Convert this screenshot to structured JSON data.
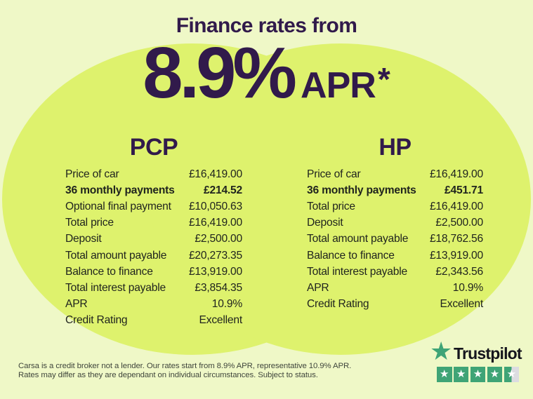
{
  "title": "Finance rates from",
  "headline": {
    "rate": "8.9%",
    "suffix": "APR",
    "asterisk": "*"
  },
  "columns": [
    {
      "name": "PCP",
      "rows": [
        {
          "label": "Price of car",
          "value": "£16,419.00"
        },
        {
          "label": "36 monthly payments",
          "value": "£214.52"
        },
        {
          "label": "Optional final payment",
          "value": "£10,050.63"
        },
        {
          "label": "Total price",
          "value": "£16,419.00"
        },
        {
          "label": "Deposit",
          "value": "£2,500.00"
        },
        {
          "label": "Total amount payable",
          "value": "£20,273.35"
        },
        {
          "label": "Balance to finance",
          "value": "£13,919.00"
        },
        {
          "label": "Total interest payable",
          "value": "£3,854.35"
        },
        {
          "label": "APR",
          "value": "10.9%"
        },
        {
          "label": "Credit Rating",
          "value": "Excellent"
        }
      ]
    },
    {
      "name": "HP",
      "rows": [
        {
          "label": "Price of car",
          "value": "£16,419.00"
        },
        {
          "label": "36 monthly payments",
          "value": "£451.71"
        },
        {
          "label": "Total price",
          "value": "£16,419.00"
        },
        {
          "label": "Deposit",
          "value": "£2,500.00"
        },
        {
          "label": "Total amount payable",
          "value": "£18,762.56"
        },
        {
          "label": "Balance to finance",
          "value": "£13,919.00"
        },
        {
          "label": "Total interest payable",
          "value": "£2,343.56"
        },
        {
          "label": "APR",
          "value": "10.9%"
        },
        {
          "label": "Credit Rating",
          "value": "Excellent"
        }
      ]
    }
  ],
  "disclaimer": {
    "line1": "Carsa is a credit broker not a lender. Our rates start from 8.9% APR, representative 10.9% APR.",
    "line2": "Rates may differ as they are dependant on individual circumstances. Subject to status."
  },
  "trustpilot": {
    "brand": "Trustpilot",
    "star_glyph": "★",
    "rating": "4.5",
    "stars_total": 5
  },
  "colors": {
    "bg": "#EFF8C7",
    "circle": "#DEF26D",
    "purple": "#311A4B",
    "ink": "#20241E",
    "muted": "#3F453C",
    "tp_green": "#3FA476",
    "tp_gray": "#DCDCE1",
    "tp_ink": "#15151D",
    "star_white": "#FFFFFF"
  }
}
